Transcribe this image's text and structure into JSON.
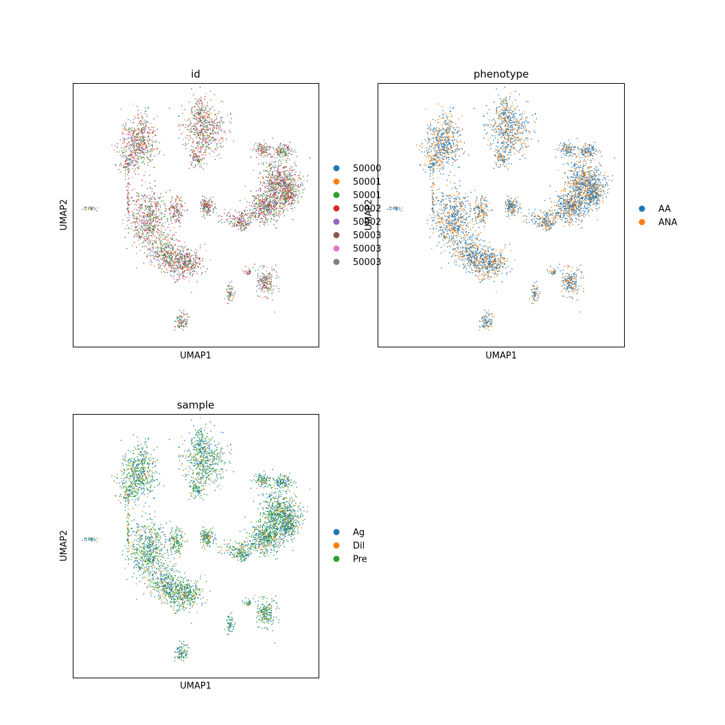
{
  "chart_data": [
    {
      "type": "scatter",
      "title": "id",
      "xlabel": "UMAP1",
      "ylabel": "UMAP2",
      "grid": false,
      "legend": {
        "placement": "right",
        "entries": [
          {
            "label": "50000",
            "color": "#1f77b4"
          },
          {
            "label": "50001",
            "color": "#ff7f0e"
          },
          {
            "label": "50001",
            "color": "#2ca02c"
          },
          {
            "label": "50002",
            "color": "#d62728"
          },
          {
            "label": "50002",
            "color": "#9467bd"
          },
          {
            "label": "50003",
            "color": "#8c564b"
          },
          {
            "label": "50003",
            "color": "#e377c2"
          },
          {
            "label": "50003",
            "color": "#7f7f7f"
          }
        ]
      }
    },
    {
      "type": "scatter",
      "title": "phenotype",
      "xlabel": "UMAP1",
      "ylabel": "UMAP2",
      "grid": false,
      "legend": {
        "placement": "right",
        "entries": [
          {
            "label": "AA",
            "color": "#1f77b4"
          },
          {
            "label": "ANA",
            "color": "#ff7f0e"
          }
        ]
      }
    },
    {
      "type": "scatter",
      "title": "sample",
      "xlabel": "UMAP1",
      "ylabel": "UMAP2",
      "grid": false,
      "legend": {
        "placement": "right",
        "entries": [
          {
            "label": "Ag",
            "color": "#1f77b4"
          },
          {
            "label": "Dil",
            "color": "#ff7f0e"
          },
          {
            "label": "Pre",
            "color": "#2ca02c"
          }
        ]
      }
    }
  ]
}
